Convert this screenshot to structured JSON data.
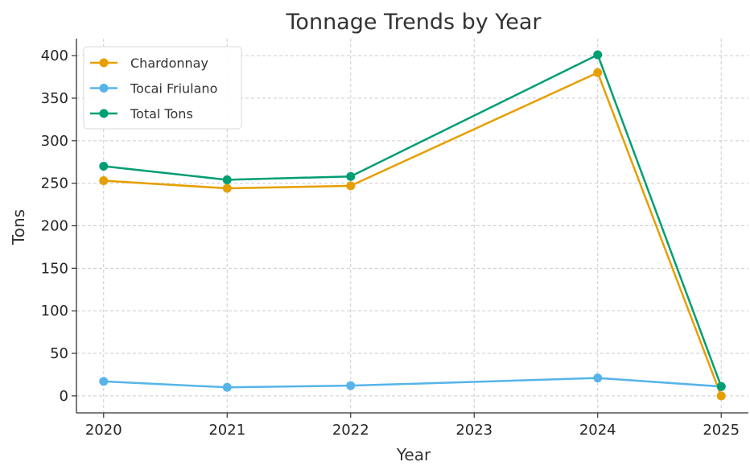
{
  "chart_data": {
    "type": "line",
    "title": "Tonnage Trends by Year",
    "xlabel": "Year",
    "ylabel": "Tons",
    "x": [
      2020,
      2021,
      2022,
      2023,
      2024,
      2025
    ],
    "xlim": [
      2019.78,
      2025.22
    ],
    "ylim": [
      -20,
      420
    ],
    "yticks": [
      0,
      50,
      100,
      150,
      200,
      250,
      300,
      350,
      400
    ],
    "grid": true,
    "legend_position": "top-left",
    "series": [
      {
        "name": "Chardonnay",
        "color": "#E69F00",
        "points": [
          [
            2020,
            253
          ],
          [
            2021,
            244
          ],
          [
            2022,
            247
          ],
          [
            2024,
            380
          ],
          [
            2025,
            0
          ]
        ]
      },
      {
        "name": "Tocai Friulano",
        "color": "#56B4E9",
        "points": [
          [
            2020,
            17
          ],
          [
            2021,
            10
          ],
          [
            2022,
            12
          ],
          [
            2024,
            21
          ],
          [
            2025,
            11
          ]
        ]
      },
      {
        "name": "Total Tons",
        "color": "#009E73",
        "points": [
          [
            2020,
            270
          ],
          [
            2021,
            254
          ],
          [
            2022,
            258
          ],
          [
            2024,
            401
          ],
          [
            2025,
            11
          ]
        ]
      }
    ]
  }
}
